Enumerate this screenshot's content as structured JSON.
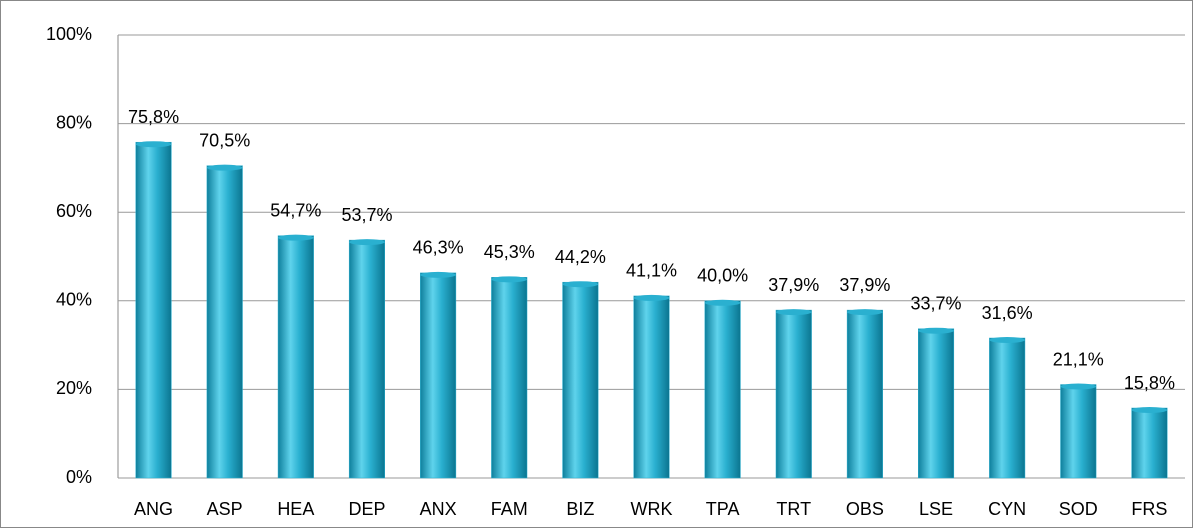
{
  "chart_data": {
    "type": "bar",
    "categories": [
      "ANG",
      "ASP",
      "HEA",
      "DEP",
      "ANX",
      "FAM",
      "BIZ",
      "WRK",
      "TPA",
      "TRT",
      "OBS",
      "LSE",
      "CYN",
      "SOD",
      "FRS"
    ],
    "values": [
      75.8,
      70.5,
      54.7,
      53.7,
      46.3,
      45.3,
      44.2,
      41.1,
      40.0,
      37.9,
      37.9,
      33.7,
      31.6,
      21.1,
      15.8
    ],
    "value_labels": [
      "75,8%",
      "70,5%",
      "54,7%",
      "53,7%",
      "46,3%",
      "45,3%",
      "44,2%",
      "41,1%",
      "40,0%",
      "37,9%",
      "37,9%",
      "33,7%",
      "31,6%",
      "21,1%",
      "15,8%"
    ],
    "color": "#2ab0d0",
    "ylim": [
      0,
      100
    ],
    "yticks": [
      {
        "value": 0,
        "label": "0%"
      },
      {
        "value": 20,
        "label": "20%"
      },
      {
        "value": 40,
        "label": "40%"
      },
      {
        "value": 60,
        "label": "60%"
      },
      {
        "value": 80,
        "label": "80%"
      },
      {
        "value": 100,
        "label": "100%"
      }
    ],
    "grid": true
  }
}
